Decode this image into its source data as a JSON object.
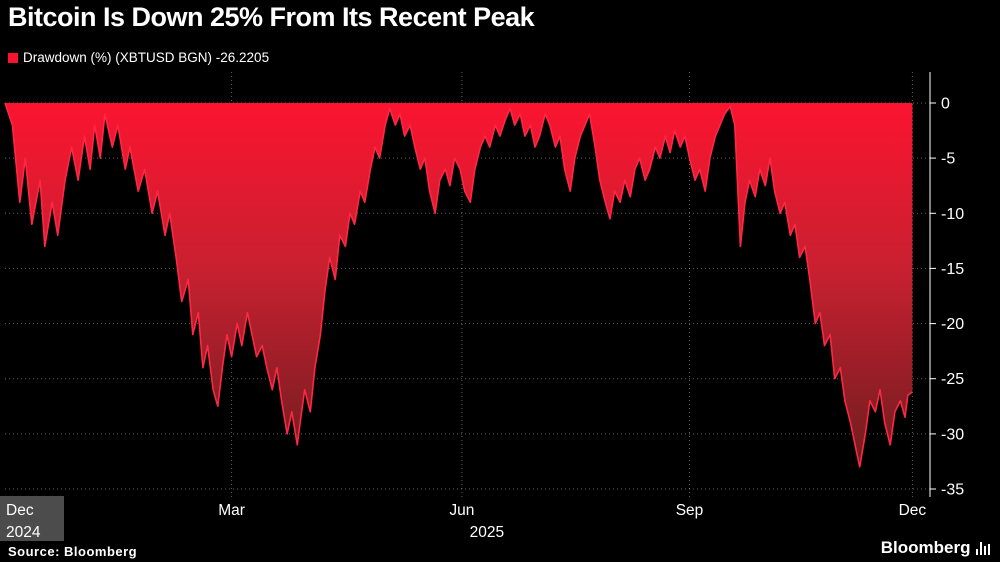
{
  "title": "Bitcoin Is Down 25% From Its Recent Peak",
  "legend": {
    "swatch_color": "#fb1430",
    "label": "Drawdown (%) (XBTUSD BGN) -26.2205"
  },
  "footer": {
    "source": "Source: Bloomberg",
    "brand": "Bloomberg"
  },
  "chart_data": {
    "type": "area",
    "title": "Bitcoin Is Down 25% From Its Recent Peak",
    "series_name": "Drawdown (%) (XBTUSD BGN)",
    "last_value": -26.2205,
    "ylim": [
      -35,
      0
    ],
    "grid": true,
    "legend_position": "top-left",
    "colors": {
      "line": "#ff2744",
      "area_top": "#fb1430",
      "area_mid": "#c92030",
      "area_bottom": "#6e1d1f",
      "background": "#000000",
      "axis": "#ffffff"
    },
    "y_ticks": [
      0,
      -5,
      -10,
      -15,
      -20,
      -25,
      -30,
      -35
    ],
    "x_ticks": [
      {
        "pos": 0.003,
        "label": "Dec",
        "sublabel": "2024",
        "edge": "left"
      },
      {
        "pos": 0.245,
        "label": "Mar"
      },
      {
        "pos": 0.494,
        "label": "Jun",
        "sublabel": "2025",
        "sublabel_pos": 0.521
      },
      {
        "pos": 0.74,
        "label": "Sep"
      },
      {
        "pos": 0.981,
        "label": "Dec"
      }
    ],
    "points": [
      [
        0.0,
        0
      ],
      [
        0.008,
        -2
      ],
      [
        0.016,
        -9
      ],
      [
        0.022,
        -5
      ],
      [
        0.029,
        -11
      ],
      [
        0.038,
        -7
      ],
      [
        0.043,
        -13
      ],
      [
        0.051,
        -9
      ],
      [
        0.057,
        -12
      ],
      [
        0.065,
        -7
      ],
      [
        0.072,
        -4
      ],
      [
        0.079,
        -7
      ],
      [
        0.086,
        -3
      ],
      [
        0.092,
        -6
      ],
      [
        0.097,
        -2
      ],
      [
        0.103,
        -5
      ],
      [
        0.108,
        -1
      ],
      [
        0.116,
        -4
      ],
      [
        0.122,
        -2
      ],
      [
        0.13,
        -6
      ],
      [
        0.135,
        -4
      ],
      [
        0.144,
        -8
      ],
      [
        0.151,
        -6
      ],
      [
        0.159,
        -10
      ],
      [
        0.165,
        -8
      ],
      [
        0.173,
        -12
      ],
      [
        0.178,
        -10
      ],
      [
        0.185,
        -14
      ],
      [
        0.191,
        -18
      ],
      [
        0.198,
        -16
      ],
      [
        0.203,
        -21
      ],
      [
        0.209,
        -19
      ],
      [
        0.214,
        -24
      ],
      [
        0.219,
        -22
      ],
      [
        0.225,
        -26
      ],
      [
        0.23,
        -27.5
      ],
      [
        0.235,
        -24
      ],
      [
        0.24,
        -21
      ],
      [
        0.245,
        -23
      ],
      [
        0.251,
        -20
      ],
      [
        0.256,
        -22
      ],
      [
        0.262,
        -19
      ],
      [
        0.267,
        -21
      ],
      [
        0.272,
        -23
      ],
      [
        0.278,
        -22
      ],
      [
        0.283,
        -24
      ],
      [
        0.289,
        -26
      ],
      [
        0.294,
        -24
      ],
      [
        0.299,
        -27
      ],
      [
        0.305,
        -30
      ],
      [
        0.31,
        -28
      ],
      [
        0.316,
        -31
      ],
      [
        0.319,
        -29
      ],
      [
        0.324,
        -26
      ],
      [
        0.33,
        -28
      ],
      [
        0.335,
        -24
      ],
      [
        0.341,
        -21
      ],
      [
        0.346,
        -17
      ],
      [
        0.351,
        -14
      ],
      [
        0.357,
        -16
      ],
      [
        0.362,
        -12
      ],
      [
        0.368,
        -13
      ],
      [
        0.373,
        -10
      ],
      [
        0.378,
        -11
      ],
      [
        0.384,
        -8
      ],
      [
        0.389,
        -9
      ],
      [
        0.395,
        -6
      ],
      [
        0.4,
        -4
      ],
      [
        0.405,
        -5
      ],
      [
        0.411,
        -2
      ],
      [
        0.416,
        -0.5
      ],
      [
        0.422,
        -2
      ],
      [
        0.427,
        -1
      ],
      [
        0.432,
        -3
      ],
      [
        0.438,
        -2
      ],
      [
        0.443,
        -4
      ],
      [
        0.449,
        -6
      ],
      [
        0.454,
        -5
      ],
      [
        0.459,
        -8
      ],
      [
        0.465,
        -10
      ],
      [
        0.47,
        -7
      ],
      [
        0.476,
        -6
      ],
      [
        0.481,
        -7.5
      ],
      [
        0.486,
        -5
      ],
      [
        0.492,
        -6
      ],
      [
        0.497,
        -8
      ],
      [
        0.503,
        -9
      ],
      [
        0.508,
        -6
      ],
      [
        0.514,
        -4
      ],
      [
        0.519,
        -3
      ],
      [
        0.524,
        -4
      ],
      [
        0.53,
        -2
      ],
      [
        0.535,
        -3
      ],
      [
        0.541,
        -1.5
      ],
      [
        0.546,
        -0.5
      ],
      [
        0.551,
        -2
      ],
      [
        0.557,
        -1
      ],
      [
        0.562,
        -3
      ],
      [
        0.568,
        -2
      ],
      [
        0.573,
        -4
      ],
      [
        0.578,
        -3
      ],
      [
        0.584,
        -1
      ],
      [
        0.589,
        -2
      ],
      [
        0.595,
        -4
      ],
      [
        0.6,
        -3
      ],
      [
        0.605,
        -6
      ],
      [
        0.611,
        -8
      ],
      [
        0.616,
        -5
      ],
      [
        0.622,
        -3
      ],
      [
        0.627,
        -2
      ],
      [
        0.632,
        -1
      ],
      [
        0.638,
        -4
      ],
      [
        0.643,
        -7
      ],
      [
        0.649,
        -9
      ],
      [
        0.654,
        -10.5
      ],
      [
        0.659,
        -8
      ],
      [
        0.665,
        -9
      ],
      [
        0.67,
        -7
      ],
      [
        0.676,
        -8.5
      ],
      [
        0.681,
        -6
      ],
      [
        0.686,
        -5
      ],
      [
        0.692,
        -7
      ],
      [
        0.697,
        -6
      ],
      [
        0.703,
        -4
      ],
      [
        0.708,
        -5
      ],
      [
        0.714,
        -3
      ],
      [
        0.719,
        -4.5
      ],
      [
        0.724,
        -2.5
      ],
      [
        0.73,
        -4
      ],
      [
        0.735,
        -3
      ],
      [
        0.74,
        -5
      ],
      [
        0.746,
        -7
      ],
      [
        0.751,
        -6
      ],
      [
        0.757,
        -8
      ],
      [
        0.762,
        -5
      ],
      [
        0.768,
        -3
      ],
      [
        0.773,
        -2
      ],
      [
        0.778,
        -1
      ],
      [
        0.784,
        -0.3
      ],
      [
        0.789,
        -2
      ],
      [
        0.795,
        -13
      ],
      [
        0.8,
        -9
      ],
      [
        0.805,
        -7
      ],
      [
        0.811,
        -8.5
      ],
      [
        0.816,
        -6
      ],
      [
        0.822,
        -7.5
      ],
      [
        0.827,
        -5
      ],
      [
        0.832,
        -8
      ],
      [
        0.838,
        -10
      ],
      [
        0.843,
        -9
      ],
      [
        0.849,
        -12
      ],
      [
        0.854,
        -11
      ],
      [
        0.859,
        -14
      ],
      [
        0.865,
        -13
      ],
      [
        0.87,
        -16
      ],
      [
        0.876,
        -20
      ],
      [
        0.881,
        -19
      ],
      [
        0.886,
        -22
      ],
      [
        0.892,
        -21
      ],
      [
        0.897,
        -25
      ],
      [
        0.903,
        -24
      ],
      [
        0.908,
        -27
      ],
      [
        0.914,
        -29
      ],
      [
        0.919,
        -31
      ],
      [
        0.924,
        -33
      ],
      [
        0.93,
        -30
      ],
      [
        0.935,
        -27
      ],
      [
        0.941,
        -28
      ],
      [
        0.946,
        -26
      ],
      [
        0.951,
        -29
      ],
      [
        0.957,
        -31
      ],
      [
        0.962,
        -28
      ],
      [
        0.968,
        -27
      ],
      [
        0.973,
        -28.5
      ],
      [
        0.976,
        -26.5
      ],
      [
        0.981,
        -26.2
      ]
    ]
  }
}
